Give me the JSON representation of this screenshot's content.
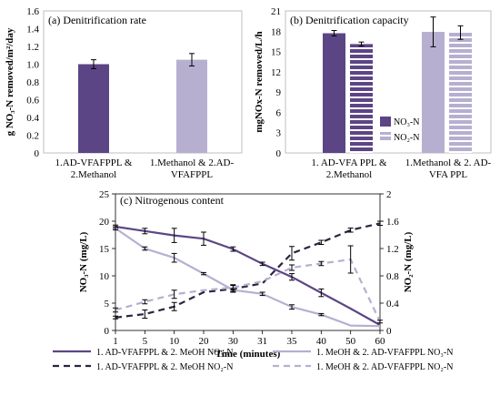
{
  "chart_data": [
    {
      "type": "bar",
      "title": "(a) Denitrification rate",
      "ylabel": "g NO₃-N removed/m²/day",
      "ylim": [
        0,
        1.6
      ],
      "yticks": [
        "0",
        "0.2",
        "0.4",
        "0.6",
        "0.8",
        "1.0",
        "1.2",
        "1.4",
        "1.6"
      ],
      "categories": [
        [
          "1.AD-VFAFPPL &",
          "2.Methanol"
        ],
        [
          "1.Methanol & 2.AD-",
          "VFAFPPL"
        ]
      ],
      "values": [
        1.0,
        1.05
      ],
      "errors": [
        0.05,
        0.07
      ],
      "colors": [
        "#5c4585",
        "#b7afd0"
      ],
      "grid": false
    },
    {
      "type": "bar",
      "title": "(b) Denitrification capacity",
      "ylabel": "mgNOx-N removed/L/h",
      "ylim": [
        0,
        21
      ],
      "yticks": [
        "0",
        "3",
        "6",
        "9",
        "12",
        "15",
        "18",
        "21"
      ],
      "categories": [
        [
          "1. AD-VFA PPL &",
          "2.Methanol"
        ],
        [
          "1.Methanol & 2. AD-",
          "VFA PPL"
        ]
      ],
      "series": [
        {
          "name": "NO₃-N",
          "values": [
            17.7,
            17.9
          ],
          "errors": [
            0.4,
            2.2
          ]
        },
        {
          "name": "NO₂-N",
          "values": [
            16.1,
            17.8
          ],
          "errors": [
            0.3,
            1.0
          ]
        }
      ],
      "colors": {
        "no3_first": "#5c4585",
        "no2_first": "#5c4585",
        "no3_second": "#b7afd0",
        "no2_second": "#b7afd0"
      },
      "legend": "bottom-left",
      "grid": false
    },
    {
      "type": "line",
      "title": "(c) Nitrogenous content",
      "xlabel": "Time (minutes)",
      "ylabel": "NO₃-N (mg/L)",
      "ylabel_right": "NO₂-N (mg/L)",
      "x": [
        "1",
        "5",
        "10",
        "20",
        "30",
        "31",
        "35",
        "40",
        "50",
        "60"
      ],
      "ylim": [
        0,
        25
      ],
      "ylim_right": [
        0,
        2
      ],
      "yticks": [
        "0",
        "5",
        "10",
        "15",
        "20",
        "25"
      ],
      "yticks_right": [
        "0",
        "0.4",
        "0.8",
        "1.2",
        "1.6",
        "2"
      ],
      "series": [
        {
          "name": "1. AD-VFAFPPL & 2. MeOH NO₃-N",
          "axis": "left",
          "style": "solid",
          "color": "#5c4585",
          "values": [
            19.0,
            18.2,
            17.4,
            16.8,
            14.9,
            12.2,
            9.8,
            6.9,
            4.0,
            1.0
          ],
          "errors": [
            0.3,
            0.5,
            1.3,
            1.2,
            0.4,
            0.3,
            0.6,
            0.7,
            null,
            null
          ]
        },
        {
          "name": "1. MeOH & 2. AD-VFAFPPL NO₃-N",
          "axis": "left",
          "style": "solid",
          "color": "#b7afd0",
          "values": [
            18.7,
            15.0,
            13.3,
            10.4,
            7.4,
            6.7,
            4.3,
            2.9,
            0.9,
            0.8
          ],
          "errors": [
            0.3,
            0.3,
            0.8,
            0.2,
            0.3,
            0.3,
            0.4,
            0.2,
            null,
            null
          ]
        },
        {
          "name": "1. AD-VFAFPPL & 2. MeOH NO₂-N",
          "axis": "right",
          "style": "dashed",
          "color": "#2a2540",
          "values": [
            0.19,
            0.24,
            0.35,
            0.56,
            0.61,
            0.69,
            1.13,
            1.29,
            1.47,
            1.57
          ],
          "errors": [
            0.02,
            0.06,
            0.06,
            null,
            0.05,
            null,
            0.1,
            0.03,
            0.03,
            0.03
          ]
        },
        {
          "name": "1. MeOH & 2. AD-VFAFPPL NO₂-N",
          "axis": "right",
          "style": "dashed",
          "color": "#b7afd0",
          "values": [
            0.3,
            0.42,
            0.53,
            0.59,
            0.63,
            0.72,
            0.92,
            0.98,
            1.04,
            0.13
          ],
          "errors": [
            0.03,
            0.03,
            0.06,
            null,
            0.04,
            null,
            0.04,
            0.03,
            0.2,
            0.02
          ]
        }
      ],
      "legend": "bottom",
      "grid": false
    }
  ]
}
